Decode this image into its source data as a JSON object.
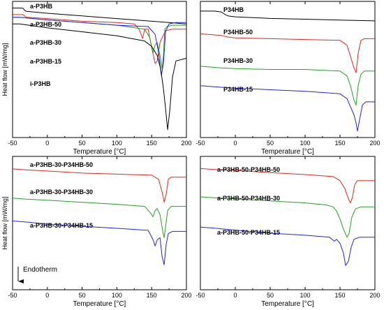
{
  "figure": {
    "endotherm_label": "Endotherm"
  },
  "chart_data": [
    {
      "type": "line",
      "panel": "top-left",
      "xlabel": "Temperature [°C]",
      "ylabel": "Heat flow [mW/mg]",
      "xlim": [
        -50,
        200
      ],
      "xticks": [
        -50,
        0,
        50,
        100,
        150,
        200
      ],
      "y_tick_labels": false,
      "grid": false,
      "series": [
        {
          "name": "a-P3HB",
          "color": "#000000",
          "x": [
            -50,
            -40,
            -35,
            -33,
            -30,
            0,
            50,
            100,
            150,
            200
          ],
          "y": [
            0.6,
            0.6,
            0.58,
            0.45,
            0.35,
            0.2,
            0.0,
            -0.2,
            -0.4,
            -0.6
          ]
        },
        {
          "name": "a-P3HB-50",
          "color": "#e8231d",
          "x": [
            -50,
            -40,
            -35,
            -33,
            -30,
            0,
            50,
            100,
            125,
            132,
            137,
            140,
            145,
            150,
            155,
            158,
            162,
            170,
            180,
            200
          ],
          "y": [
            0.1,
            0.1,
            0.1,
            0.0,
            -0.1,
            -0.2,
            -0.4,
            -0.5,
            -0.6,
            -1.0,
            -1.7,
            -1.0,
            -1.0,
            -2.4,
            -3.6,
            -3.4,
            -2.0,
            -1.1,
            -1.0,
            -1.0
          ]
        },
        {
          "name": "a-P3HB-30",
          "color": "#22a022",
          "x": [
            -50,
            -40,
            0,
            50,
            100,
            140,
            147,
            152,
            155,
            158,
            162,
            165,
            167,
            169,
            172,
            180,
            200
          ],
          "y": [
            -0.1,
            -0.1,
            -0.3,
            -0.5,
            -0.7,
            -1.0,
            -1.6,
            -2.8,
            -2.2,
            -2.0,
            -3.0,
            -4.0,
            -3.0,
            -1.0,
            -0.8,
            -0.7,
            -0.7
          ]
        },
        {
          "name": "a-P3HB-15",
          "color": "#2222ee",
          "x": [
            -50,
            -40,
            0,
            50,
            100,
            145,
            155,
            160,
            164,
            167,
            170,
            175,
            185,
            200
          ],
          "y": [
            -0.1,
            -0.1,
            -0.3,
            -0.5,
            -0.7,
            -0.8,
            -1.4,
            -2.8,
            -4.5,
            -3.6,
            -1.2,
            -0.6,
            -0.5,
            -0.5
          ]
        },
        {
          "name": "i-P3HB",
          "color": "#000000",
          "x": [
            -50,
            -40,
            0,
            50,
            100,
            140,
            150,
            158,
            163,
            167,
            170,
            173,
            176,
            180,
            185,
            200
          ],
          "y": [
            -0.6,
            -0.6,
            -0.9,
            -1.2,
            -1.5,
            -1.9,
            -2.3,
            -3.0,
            -4.0,
            -5.5,
            -7.0,
            -8.6,
            -7.2,
            -4.6,
            -3.4,
            -3.2
          ]
        }
      ]
    },
    {
      "type": "line",
      "panel": "top-right",
      "xlabel": "Temperature [°C]",
      "ylabel": "",
      "xlim": [
        -50,
        200
      ],
      "xticks": [
        -50,
        0,
        50,
        100,
        150,
        200
      ],
      "y_tick_labels": false,
      "grid": false,
      "series": [
        {
          "name": "P34HB",
          "color": "#000000",
          "x": [
            -50,
            -30,
            -20,
            -15,
            -10,
            0,
            50,
            100,
            150,
            200
          ],
          "y": [
            0.2,
            0.2,
            0.15,
            0.0,
            -0.1,
            -0.15,
            -0.25,
            -0.3,
            -0.35,
            -0.4
          ]
        },
        {
          "name": "P34HB-50",
          "color": "#e8231d",
          "x": [
            -50,
            -20,
            -10,
            0,
            50,
            100,
            150,
            160,
            165,
            170,
            173,
            176,
            180,
            185,
            200
          ],
          "y": [
            -1.2,
            -1.3,
            -1.4,
            -1.45,
            -1.5,
            -1.55,
            -1.6,
            -1.9,
            -2.6,
            -3.3,
            -3.6,
            -2.4,
            -1.6,
            -1.5,
            -1.5
          ]
        },
        {
          "name": "P34HB-30",
          "color": "#22a022",
          "x": [
            -50,
            -20,
            0,
            50,
            100,
            150,
            160,
            165,
            170,
            173,
            176,
            180,
            185,
            200
          ],
          "y": [
            -3.2,
            -3.3,
            -3.35,
            -3.4,
            -3.4,
            -3.5,
            -3.8,
            -4.4,
            -5.3,
            -5.6,
            -4.4,
            -3.7,
            -3.5,
            -3.5
          ]
        },
        {
          "name": "P34HB-15",
          "color": "#2222ee",
          "x": [
            -50,
            -20,
            0,
            50,
            100,
            150,
            160,
            165,
            170,
            173,
            175,
            178,
            182,
            187,
            200
          ],
          "y": [
            -4.4,
            -4.5,
            -4.55,
            -4.65,
            -4.75,
            -4.9,
            -5.2,
            -5.7,
            -6.2,
            -6.7,
            -7.2,
            -6.5,
            -5.6,
            -5.4,
            -5.4
          ]
        }
      ]
    },
    {
      "type": "line",
      "panel": "bottom-left",
      "xlabel": "Temperature [°C]",
      "ylabel": "Heat flow [mW/mg]",
      "xlim": [
        -50,
        200
      ],
      "xticks": [
        -50,
        0,
        50,
        100,
        150,
        200
      ],
      "y_tick_labels": false,
      "grid": false,
      "annotation": "Endotherm",
      "series": [
        {
          "name": "a-P3HB-30-P34HB-50",
          "color": "#e8231d",
          "x": [
            -50,
            -30,
            0,
            50,
            100,
            150,
            160,
            165,
            168,
            171,
            174,
            178,
            185,
            200
          ],
          "y": [
            0.2,
            0.15,
            0.1,
            0.0,
            -0.05,
            -0.1,
            -0.3,
            -0.9,
            -1.4,
            -1.0,
            -0.3,
            -0.2,
            -0.2,
            -0.2
          ]
        },
        {
          "name": "a-P3HB-30-P34HB-30",
          "color": "#22a022",
          "x": [
            -50,
            -30,
            0,
            50,
            100,
            140,
            148,
            152,
            155,
            158,
            162,
            166,
            168,
            170,
            173,
            178,
            185,
            200
          ],
          "y": [
            -1.2,
            -1.25,
            -1.3,
            -1.4,
            -1.5,
            -1.6,
            -1.9,
            -2.1,
            -1.8,
            -1.7,
            -2.0,
            -2.8,
            -3.1,
            -2.6,
            -1.8,
            -1.6,
            -1.6,
            -1.6
          ]
        },
        {
          "name": "a-P3HB-30-P34HB-15",
          "color": "#2222ee",
          "x": [
            -50,
            -30,
            0,
            50,
            100,
            145,
            152,
            155,
            158,
            162,
            165,
            168,
            171,
            174,
            180,
            200
          ],
          "y": [
            -2.3,
            -2.35,
            -2.45,
            -2.55,
            -2.65,
            -2.75,
            -3.2,
            -3.5,
            -3.2,
            -3.1,
            -4.0,
            -4.4,
            -3.4,
            -2.9,
            -2.8,
            -2.8
          ]
        }
      ]
    },
    {
      "type": "line",
      "panel": "bottom-right",
      "xlabel": "Temperature [°C]",
      "ylabel": "",
      "xlim": [
        -50,
        200
      ],
      "xticks": [
        -50,
        0,
        50,
        100,
        150,
        200
      ],
      "y_tick_labels": false,
      "grid": false,
      "series": [
        {
          "name": "a-P3HB-50-P34HB-50",
          "color": "#e8231d",
          "x": [
            -50,
            -30,
            0,
            50,
            100,
            140,
            150,
            157,
            162,
            165,
            168,
            171,
            175,
            185,
            200
          ],
          "y": [
            0.2,
            0.15,
            0.1,
            0.0,
            -0.1,
            -0.2,
            -0.4,
            -0.8,
            -1.3,
            -1.5,
            -1.2,
            -0.6,
            -0.4,
            -0.4,
            -0.4
          ]
        },
        {
          "name": "a-P3HB-50-P34HB-30",
          "color": "#22a022",
          "x": [
            -50,
            -30,
            0,
            50,
            100,
            130,
            140,
            145,
            150,
            155,
            160,
            163,
            167,
            172,
            180,
            200
          ],
          "y": [
            -1.2,
            -1.25,
            -1.3,
            -1.4,
            -1.5,
            -1.6,
            -1.7,
            -1.9,
            -2.3,
            -2.8,
            -3.2,
            -3.0,
            -2.2,
            -1.8,
            -1.7,
            -1.7
          ]
        },
        {
          "name": "a-P3HB-50-P34HB-15",
          "color": "#2222ee",
          "x": [
            -50,
            -30,
            0,
            50,
            100,
            135,
            142,
            145,
            150,
            155,
            158,
            162,
            166,
            170,
            178,
            200
          ],
          "y": [
            -2.7,
            -2.75,
            -2.85,
            -3.0,
            -3.1,
            -3.2,
            -3.4,
            -3.3,
            -3.5,
            -4.0,
            -4.6,
            -4.4,
            -3.7,
            -3.3,
            -3.2,
            -3.2
          ]
        }
      ]
    }
  ]
}
